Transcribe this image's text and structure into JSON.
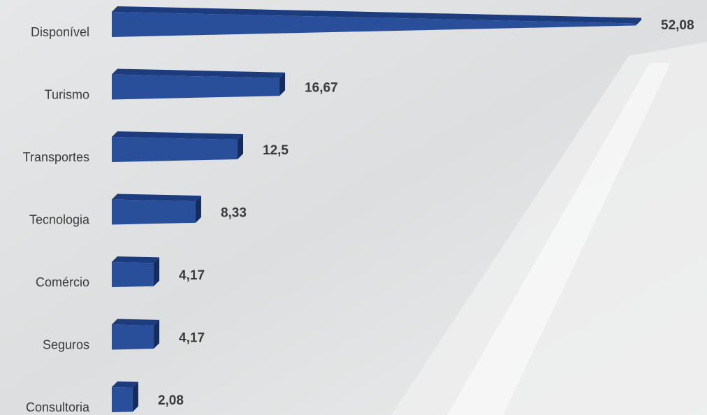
{
  "chart_data": {
    "type": "bar",
    "orientation": "horizontal",
    "categories": [
      "Disponível",
      "Turismo",
      "Transportes",
      "Tecnologia",
      "Comércio",
      "Seguros",
      "Consultoria"
    ],
    "values": [
      52.08,
      16.67,
      12.5,
      8.33,
      4.17,
      4.17,
      2.08
    ],
    "value_labels": [
      "52,08",
      "16,67",
      "12,5",
      "8,33",
      "4,17",
      "4,17",
      "2,08"
    ],
    "color": "#2a4f9a"
  }
}
